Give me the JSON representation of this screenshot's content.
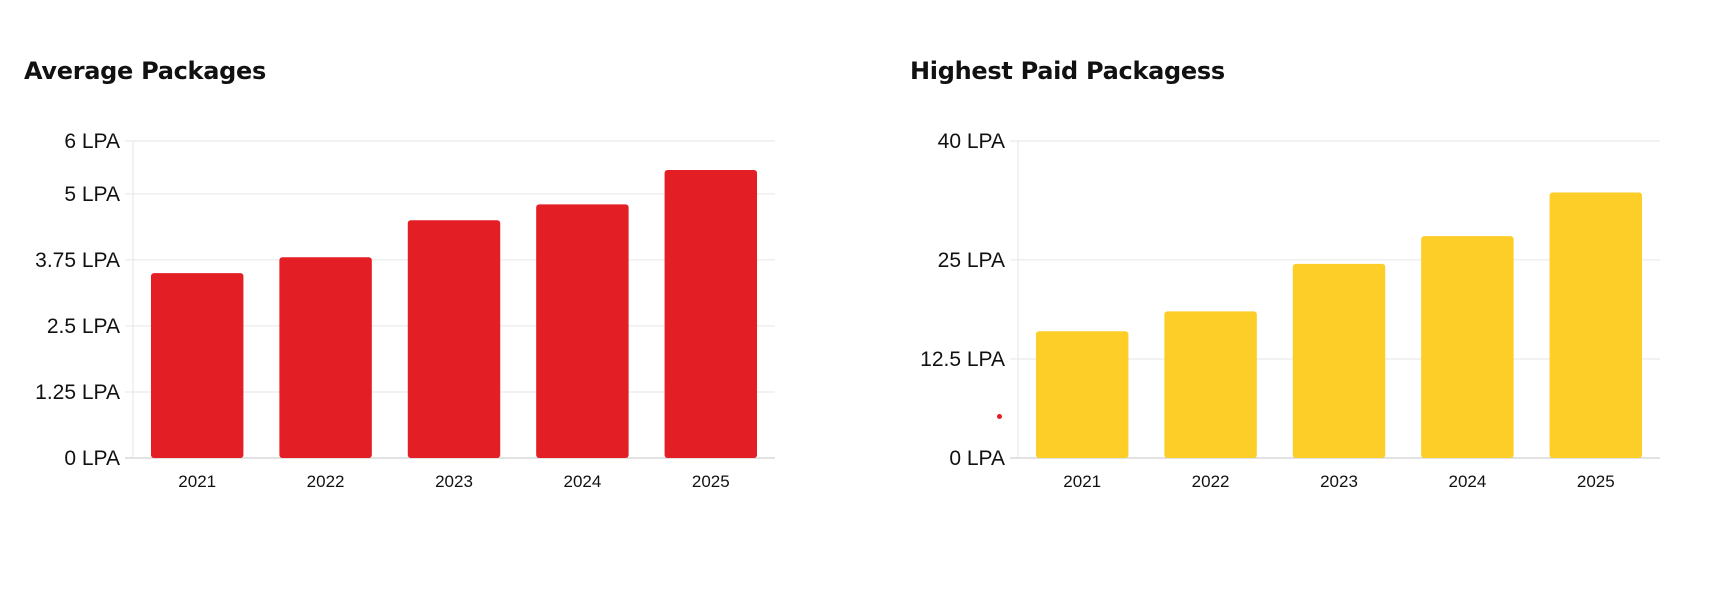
{
  "chart_data": [
    {
      "type": "bar",
      "title": "Average Packages",
      "xlabel": "",
      "ylabel": "",
      "categories": [
        "2021",
        "2022",
        "2023",
        "2024",
        "2025"
      ],
      "values": [
        3.5,
        3.8,
        4.5,
        4.8,
        5.45
      ],
      "y_ticks": [
        0,
        1.25,
        2.5,
        3.75,
        5,
        6
      ],
      "y_tick_labels": [
        "0 LPA",
        "1.25 LPA",
        "2.5 LPA",
        "3.75 LPA",
        "5 LPA",
        "6 LPA"
      ],
      "ylim": [
        0,
        6
      ],
      "color": "#e31e25",
      "grid": true,
      "legend": "none"
    },
    {
      "type": "bar",
      "title": "Highest Paid Packagess",
      "xlabel": "",
      "ylabel": "",
      "categories": [
        "2021",
        "2022",
        "2023",
        "2024",
        "2025"
      ],
      "values": [
        16,
        18.5,
        24.5,
        28,
        33.5
      ],
      "y_ticks": [
        0,
        12.5,
        25,
        40
      ],
      "y_tick_labels": [
        "0 LPA",
        "12.5 LPA",
        "25 LPA",
        "40 LPA"
      ],
      "ylim": [
        0,
        40
      ],
      "color": "#fdcd28",
      "grid": true,
      "legend": "none"
    }
  ],
  "colors": {
    "stray_dot": "#e31e25"
  }
}
